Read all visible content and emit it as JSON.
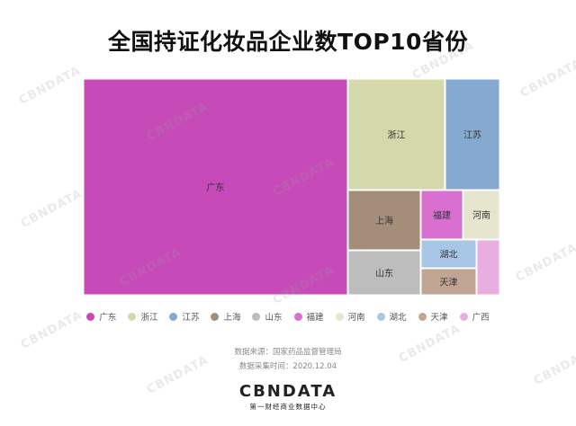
{
  "title": "全国持证化妆品企业数TOP10省份",
  "chart_data": {
    "type": "treemap",
    "title": "全国持证化妆品企业数TOP10省份",
    "legend_position": "bottom",
    "items": [
      {
        "name": "广东",
        "value": 58,
        "color": "#C64BB8"
      },
      {
        "name": "浙江",
        "value": 8.1,
        "color": "#D5D8AA"
      },
      {
        "name": "江苏",
        "value": 5.5,
        "color": "#86AACF"
      },
      {
        "name": "上海",
        "value": 4.7,
        "color": "#A58E79"
      },
      {
        "name": "山东",
        "value": 4.2,
        "color": "#BDBDBD"
      },
      {
        "name": "福建",
        "value": 2.5,
        "color": "#D96FD1"
      },
      {
        "name": "河南",
        "value": 2.2,
        "color": "#E6E6CF"
      },
      {
        "name": "湖北",
        "value": 1.6,
        "color": "#A8C7E6"
      },
      {
        "name": "天津",
        "value": 1.6,
        "color": "#C0A692"
      },
      {
        "name": "广西",
        "value": 1.5,
        "color": "#E8AEE0"
      }
    ]
  },
  "source": {
    "line1": "数据来源：国家药品监督管理局",
    "line2": "数据采集时间：2020.12.04"
  },
  "logo": {
    "name": "CBNDATA",
    "subtitle": "第一财经商业数据中心"
  },
  "watermark_text": "CBNDATA"
}
